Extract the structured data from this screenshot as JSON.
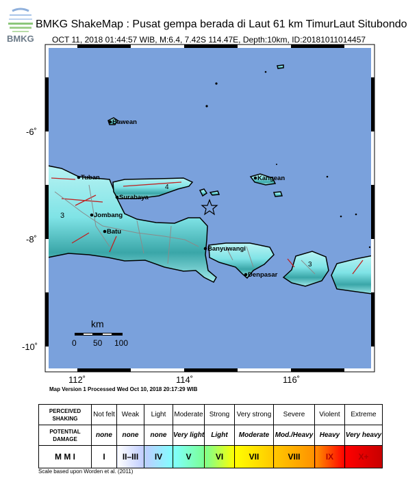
{
  "header": {
    "title": "BMKG ShakeMap : Pusat gempa berada di Laut 61 km TimurLaut Situbondo",
    "subtitle": "OCT 11, 2018 01:44:57 WIB, M:6.4, 7.42S 114.47E, Depth:10km, ID:20181011014457",
    "logo_text": "BMKG"
  },
  "map": {
    "sea_color": "#7aa1dc",
    "land_color": "#7fe6ea",
    "lat_labels": [
      "-6˚",
      "-8˚",
      "-10˚"
    ],
    "lon_labels": [
      "112˚",
      "114˚",
      "116˚"
    ],
    "epicenter": {
      "lat": -7.42,
      "lon": 114.47,
      "icon": "star-icon"
    },
    "cities": [
      {
        "name": "Bawean"
      },
      {
        "name": "Tuban"
      },
      {
        "name": "Surabaya"
      },
      {
        "name": "Jombang"
      },
      {
        "name": "Batu"
      },
      {
        "name": "Banyuwangi"
      },
      {
        "name": "Denpasar"
      },
      {
        "name": "Kangean"
      }
    ],
    "contour_labels": [
      "3",
      "4",
      "3"
    ],
    "scale_bar": {
      "unit": "km",
      "labels": [
        "0",
        "50",
        "100"
      ]
    },
    "processed": "Map Version 1 Processed Wed Oct 10, 2018 20:17:29 WIB"
  },
  "legend": {
    "row_labels": [
      "PERCEIVED SHAKING",
      "POTENTIAL DAMAGE",
      "M M I"
    ],
    "shaking": [
      "Not felt",
      "Weak",
      "Light",
      "Moderate",
      "Strong",
      "Very strong",
      "Severe",
      "Violent",
      "Extreme"
    ],
    "damage": [
      "none",
      "none",
      "none",
      "Very light",
      "Light",
      "Moderate",
      "Mod./Heavy",
      "Heavy",
      "Very heavy"
    ],
    "mmi": [
      "I",
      "II–III",
      "IV",
      "V",
      "VI",
      "VII",
      "VIII",
      "IX",
      "X+"
    ],
    "mmi_colors": [
      "#ffffff",
      "#bfccff",
      "#80ffff",
      "#7aff93",
      "#ffff00",
      "#ffc800",
      "#ff9100",
      "#ff0000",
      "#c80000"
    ],
    "note": "Scale based upon Worden et al. (2011)"
  }
}
